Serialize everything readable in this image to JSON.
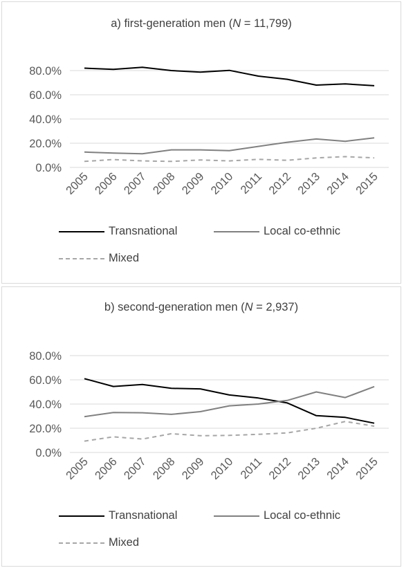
{
  "chart_data": [
    {
      "type": "line",
      "title_prefix": "a) first-generation men (",
      "title_italic": "N",
      "title_suffix": " = 11,799)",
      "x": [
        "2005",
        "2006",
        "2007",
        "2008",
        "2009",
        "2010",
        "2011",
        "2012",
        "2013",
        "2014",
        "2015"
      ],
      "ylim": [
        0,
        80
      ],
      "yticks": [
        "0.0%",
        "20.0%",
        "40.0%",
        "60.0%",
        "80.0%"
      ],
      "grid": true,
      "legend_position": "bottom",
      "series": [
        {
          "name": "Transnational",
          "color": "#000000",
          "dash": "solid",
          "values": [
            82.0,
            81.0,
            82.7,
            80.0,
            78.7,
            80.2,
            75.4,
            72.8,
            68.0,
            69.0,
            67.5
          ]
        },
        {
          "name": "Local co-ethnic",
          "color": "#808080",
          "dash": "solid",
          "values": [
            12.7,
            11.9,
            11.3,
            14.5,
            14.5,
            13.9,
            17.4,
            20.8,
            23.5,
            21.6,
            24.4
          ]
        },
        {
          "name": "Mixed",
          "color": "#a6a6a6",
          "dash": "dashed",
          "values": [
            5.0,
            6.5,
            5.4,
            5.0,
            6.2,
            5.4,
            6.7,
            5.9,
            7.8,
            8.9,
            7.9
          ]
        }
      ]
    },
    {
      "type": "line",
      "title_prefix": "b) second-generation men (",
      "title_italic": "N",
      "title_suffix": " = 2,937)",
      "x": [
        "2005",
        "2006",
        "2007",
        "2008",
        "2009",
        "2010",
        "2011",
        "2012",
        "2013",
        "2014",
        "2015"
      ],
      "ylim": [
        0,
        80
      ],
      "yticks": [
        "0.0%",
        "20.0%",
        "40.0%",
        "60.0%",
        "80.0%"
      ],
      "grid": true,
      "legend_position": "bottom",
      "series": [
        {
          "name": "Transnational",
          "color": "#000000",
          "dash": "solid",
          "values": [
            61.0,
            54.5,
            56.1,
            53.0,
            52.5,
            47.5,
            45.0,
            40.9,
            30.4,
            29.0,
            24.2
          ]
        },
        {
          "name": "Local co-ethnic",
          "color": "#808080",
          "dash": "solid",
          "values": [
            29.6,
            33.0,
            32.8,
            31.5,
            33.7,
            38.5,
            40.0,
            43.0,
            50.0,
            45.4,
            54.4
          ]
        },
        {
          "name": "Mixed",
          "color": "#a6a6a6",
          "dash": "dashed",
          "values": [
            9.4,
            12.9,
            11.1,
            15.5,
            13.8,
            14.1,
            15.0,
            16.2,
            20.0,
            25.6,
            21.7
          ]
        }
      ]
    }
  ]
}
